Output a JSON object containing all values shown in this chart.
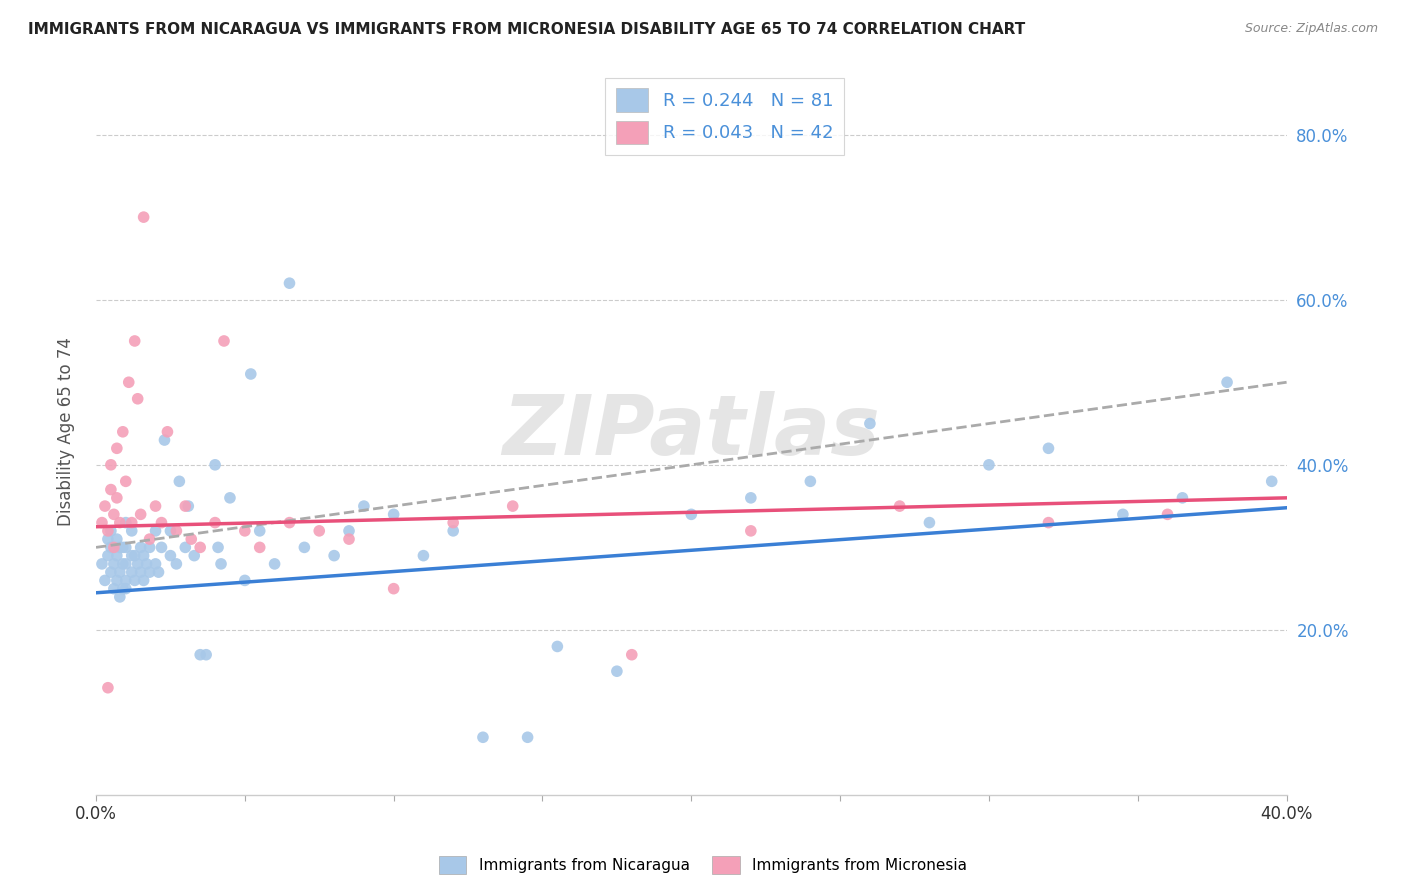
{
  "title": "IMMIGRANTS FROM NICARAGUA VS IMMIGRANTS FROM MICRONESIA DISABILITY AGE 65 TO 74 CORRELATION CHART",
  "source": "Source: ZipAtlas.com",
  "ylabel": "Disability Age 65 to 74",
  "right_yticks": [
    "20.0%",
    "40.0%",
    "60.0%",
    "80.0%"
  ],
  "right_ytick_vals": [
    0.2,
    0.4,
    0.6,
    0.8
  ],
  "xlim": [
    0.0,
    0.4
  ],
  "ylim": [
    0.0,
    0.88
  ],
  "legend_r1": "R = 0.244   N = 81",
  "legend_r2": "R = 0.043   N = 42",
  "color_nicaragua": "#a8c8e8",
  "color_micronesia": "#f4a0b8",
  "trendline_nicaragua_color": "#3a7fd5",
  "trendline_micronesia_color": "#e8507a",
  "watermark": "ZIPatlas",
  "nicaragua_x": [
    0.002,
    0.003,
    0.004,
    0.004,
    0.005,
    0.005,
    0.005,
    0.006,
    0.006,
    0.007,
    0.007,
    0.007,
    0.008,
    0.008,
    0.008,
    0.009,
    0.009,
    0.009,
    0.01,
    0.01,
    0.01,
    0.01,
    0.01,
    0.012,
    0.012,
    0.012,
    0.013,
    0.013,
    0.014,
    0.015,
    0.015,
    0.016,
    0.016,
    0.017,
    0.018,
    0.018,
    0.02,
    0.02,
    0.021,
    0.022,
    0.023,
    0.025,
    0.025,
    0.027,
    0.028,
    0.03,
    0.031,
    0.033,
    0.035,
    0.037,
    0.04,
    0.041,
    0.042,
    0.045,
    0.05,
    0.052,
    0.055,
    0.06,
    0.065,
    0.07,
    0.08,
    0.085,
    0.09,
    0.1,
    0.11,
    0.12,
    0.13,
    0.145,
    0.155,
    0.175,
    0.2,
    0.22,
    0.24,
    0.26,
    0.28,
    0.3,
    0.32,
    0.345,
    0.365,
    0.38,
    0.395
  ],
  "nicaragua_y": [
    0.28,
    0.26,
    0.29,
    0.31,
    0.27,
    0.3,
    0.32,
    0.25,
    0.28,
    0.26,
    0.29,
    0.31,
    0.24,
    0.27,
    0.3,
    0.25,
    0.28,
    0.3,
    0.26,
    0.28,
    0.3,
    0.33,
    0.25,
    0.27,
    0.29,
    0.32,
    0.26,
    0.29,
    0.28,
    0.27,
    0.3,
    0.26,
    0.29,
    0.28,
    0.27,
    0.3,
    0.28,
    0.32,
    0.27,
    0.3,
    0.43,
    0.29,
    0.32,
    0.28,
    0.38,
    0.3,
    0.35,
    0.29,
    0.17,
    0.17,
    0.4,
    0.3,
    0.28,
    0.36,
    0.26,
    0.51,
    0.32,
    0.28,
    0.62,
    0.3,
    0.29,
    0.32,
    0.35,
    0.34,
    0.29,
    0.32,
    0.07,
    0.07,
    0.18,
    0.15,
    0.34,
    0.36,
    0.38,
    0.45,
    0.33,
    0.4,
    0.42,
    0.34,
    0.36,
    0.5,
    0.38
  ],
  "micronesia_x": [
    0.002,
    0.003,
    0.004,
    0.005,
    0.005,
    0.006,
    0.007,
    0.007,
    0.008,
    0.009,
    0.01,
    0.011,
    0.012,
    0.013,
    0.014,
    0.015,
    0.016,
    0.018,
    0.02,
    0.022,
    0.024,
    0.027,
    0.03,
    0.032,
    0.035,
    0.04,
    0.043,
    0.05,
    0.055,
    0.065,
    0.075,
    0.085,
    0.1,
    0.12,
    0.14,
    0.18,
    0.22,
    0.27,
    0.32,
    0.36,
    0.004,
    0.006
  ],
  "micronesia_y": [
    0.33,
    0.35,
    0.32,
    0.37,
    0.4,
    0.34,
    0.36,
    0.42,
    0.33,
    0.44,
    0.38,
    0.5,
    0.33,
    0.55,
    0.48,
    0.34,
    0.7,
    0.31,
    0.35,
    0.33,
    0.44,
    0.32,
    0.35,
    0.31,
    0.3,
    0.33,
    0.55,
    0.32,
    0.3,
    0.33,
    0.32,
    0.31,
    0.25,
    0.33,
    0.35,
    0.17,
    0.32,
    0.35,
    0.33,
    0.34,
    0.13,
    0.3
  ],
  "trendline_nicaragua": [
    0.245,
    0.348
  ],
  "trendline_micronesia": [
    0.325,
    0.36
  ],
  "dashed_line": [
    0.3,
    0.5
  ]
}
